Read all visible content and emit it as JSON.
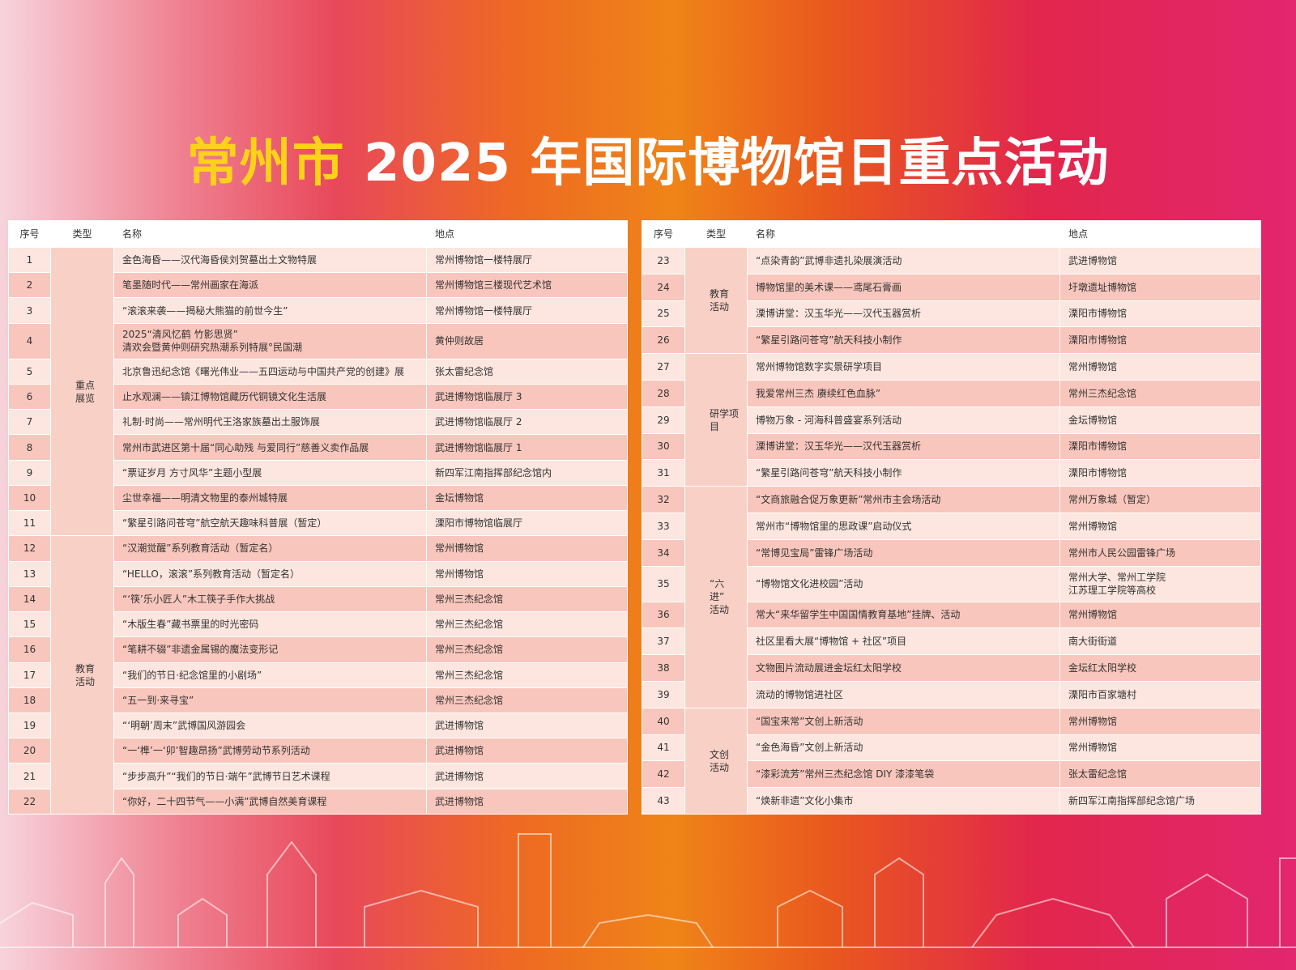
{
  "title": {
    "highlight": "常州市",
    "rest": " 2025 年国际博物馆日重点活动"
  },
  "tables": [
    {
      "header": [
        "序号",
        "类型",
        "名称",
        "地点"
      ],
      "groups": [
        {
          "type": "重点\n展览",
          "rows": [
            [
              1,
              "金色海昏——汉代海昏侯刘贺墓出土文物特展",
              "常州博物馆一楼特展厅"
            ],
            [
              2,
              "笔墨随时代——常州画家在海派",
              "常州博物馆三楼现代艺术馆"
            ],
            [
              3,
              "“滚滚来袭——揭秘大熊猫的前世今生”",
              "常州博物馆一楼特展厅"
            ],
            [
              4,
              "2025“清风忆鹤 竹影思贤”\n清欢会暨黄仲则研究热潮系列特展°民国潮",
              "黄仲则故居"
            ],
            [
              5,
              "北京鲁迅纪念馆《曙光伟业——五四运动与中国共产党的创建》展",
              "张太雷纪念馆"
            ],
            [
              6,
              "止水观澜——镇江博物馆藏历代铜镜文化生活展",
              "武进博物馆临展厅 3"
            ],
            [
              7,
              "礼制·时尚——常州明代王洛家族墓出土服饰展",
              "武进博物馆临展厅 2"
            ],
            [
              8,
              "常州市武进区第十届“同心助残 与爱同行”慈善义卖作品展",
              "武进博物馆临展厅 1"
            ],
            [
              9,
              "“票证岁月 方寸风华”主题小型展",
              "新四军江南指挥部纪念馆内"
            ],
            [
              10,
              "尘世幸福——明清文物里的泰州城特展",
              "金坛博物馆"
            ],
            [
              11,
              "“繁星引路问苍穹”航空航天趣味科普展（暂定）",
              "溧阳市博物馆临展厅"
            ]
          ]
        },
        {
          "type": "教育\n活动",
          "rows": [
            [
              12,
              "“汉潮觉醒”系列教育活动（暂定名）",
              "常州博物馆"
            ],
            [
              13,
              "“HELLO，滚滚”系列教育活动（暂定名）",
              "常州博物馆"
            ],
            [
              14,
              "“‘筷’乐小匠人”木工筷子手作大挑战",
              "常州三杰纪念馆"
            ],
            [
              15,
              "“木版生春”藏书票里的时光密码",
              "常州三杰纪念馆"
            ],
            [
              16,
              "“笔耕不辍”非遗金属锡的魔法变形记",
              "常州三杰纪念馆"
            ],
            [
              17,
              "“我们的节日·纪念馆里的小剧场”",
              "常州三杰纪念馆"
            ],
            [
              18,
              "“五一到·来寻宝”",
              "常州三杰纪念馆"
            ],
            [
              19,
              "“‘明朝’周末”武博国风游园会",
              "武进博物馆"
            ],
            [
              20,
              "“一‘榫’一‘卯’智趣昂扬”武博劳动节系列活动",
              "武进博物馆"
            ],
            [
              21,
              "“步步高升”“我们的节日·端午”武博节日艺术课程",
              "武进博物馆"
            ],
            [
              22,
              "“你好，二十四节气——小满”武博自然美育课程",
              "武进博物馆"
            ]
          ]
        }
      ]
    },
    {
      "header": [
        "序号",
        "类型",
        "名称",
        "地点"
      ],
      "groups": [
        {
          "type": "教育\n活动",
          "rows": [
            [
              23,
              "“点染青韵”武博非遗扎染展演活动",
              "武进博物馆"
            ],
            [
              24,
              "博物馆里的美术课——鸢尾石膏画",
              "圩墩遗址博物馆"
            ],
            [
              25,
              "溧博讲堂：汉玉华光——汉代玉器赏析",
              "溧阳市博物馆"
            ],
            [
              26,
              "“繁星引路问苍穹”航天科技小制作",
              "溧阳市博物馆"
            ]
          ]
        },
        {
          "type": "研学项目",
          "rows": [
            [
              27,
              "常州博物馆数字实景研学项目",
              "常州博物馆"
            ],
            [
              28,
              "我爱常州三杰 赓续红色血脉”",
              "常州三杰纪念馆"
            ],
            [
              29,
              "博物万象 - 河海科普盛宴系列活动",
              "金坛博物馆"
            ],
            [
              30,
              "溧博讲堂：汉玉华光——汉代玉器赏析",
              "溧阳市博物馆"
            ],
            [
              31,
              "“繁星引路问苍穹”航天科技小制作",
              "溧阳市博物馆"
            ]
          ]
        },
        {
          "type": "“六进”\n活动",
          "rows": [
            [
              32,
              "“文商旅融合促万象更新”常州市主会场活动",
              "常州万象城（暂定）"
            ],
            [
              33,
              "常州市“博物馆里的思政课”启动仪式",
              "常州博物馆"
            ],
            [
              34,
              "“常博见宝局”雷锋广场活动",
              "常州市人民公园雷锋广场"
            ],
            [
              35,
              "“博物馆文化进校园”活动",
              "常州大学、常州工学院\n江苏理工学院等高校"
            ],
            [
              36,
              "常大“来华留学生中国国情教育基地”挂牌、活动",
              "常州博物馆"
            ],
            [
              37,
              "社区里看大展“博物馆 + 社区”项目",
              "南大街街道"
            ],
            [
              38,
              "文物图片流动展进金坛红太阳学校",
              "金坛红太阳学校"
            ],
            [
              39,
              "流动的博物馆进社区",
              "溧阳市百家塘村"
            ]
          ]
        },
        {
          "type": "文创\n活动",
          "rows": [
            [
              40,
              "“国宝来常”文创上新活动",
              "常州博物馆"
            ],
            [
              41,
              "“金色海昏”文创上新活动",
              "常州博物馆"
            ],
            [
              42,
              "“漆彩流芳”常州三杰纪念馆 DIY 漆漆笔袋",
              "张太雷纪念馆"
            ],
            [
              43,
              "“焕新非遗”文化小集市",
              "新四军江南指挥部纪念馆广场"
            ]
          ]
        }
      ]
    }
  ]
}
